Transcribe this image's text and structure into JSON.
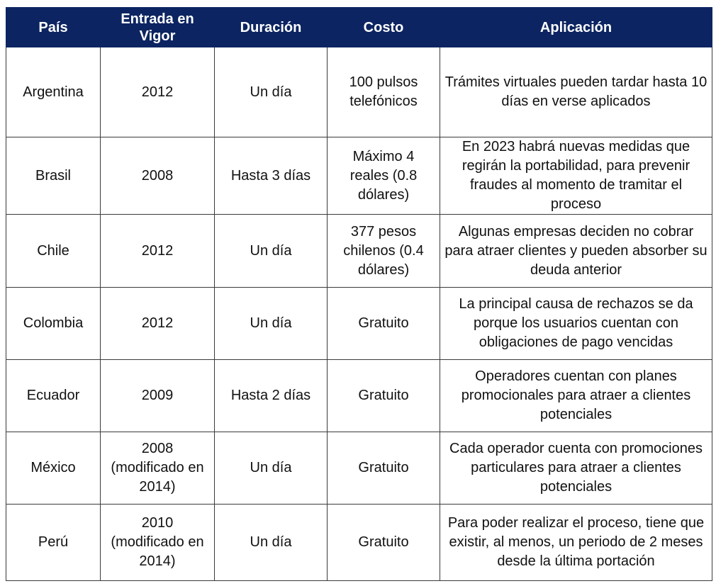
{
  "table": {
    "header": [
      "País",
      "Entrada en Vigor",
      "Duración",
      "Costo",
      "Aplicación"
    ],
    "rows": [
      [
        "Argentina",
        "2012",
        "Un día",
        "100 pulsos telefónicos",
        "Trámites virtuales pueden tardar hasta 10 días en verse aplicados"
      ],
      [
        "Brasil",
        "2008",
        "Hasta 3 días",
        "Máximo 4 reales (0.8 dólares)",
        "En 2023 habrá nuevas medidas que regirán la portabilidad, para prevenir fraudes al momento de tramitar el proceso"
      ],
      [
        "Chile",
        "2012",
        "Un día",
        "377 pesos chilenos (0.4 dólares)",
        "Algunas empresas deciden no cobrar para atraer clientes y pueden absorber su deuda anterior"
      ],
      [
        "Colombia",
        "2012",
        "Un día",
        "Gratuito",
        "La principal causa de rechazos se da porque los usuarios cuentan con obligaciones de pago vencidas"
      ],
      [
        "Ecuador",
        "2009",
        "Hasta 2 días",
        "Gratuito",
        "Operadores cuentan con planes promocionales para atraer a clientes potenciales"
      ],
      [
        "México",
        "2008 (modificado en 2014)",
        "Un día",
        "Gratuito",
        "Cada operador cuenta con promociones particulares para atraer a clientes potenciales"
      ],
      [
        "Perú",
        "2010 (modificado en 2014)",
        "Un día",
        "Gratuito",
        "Para poder realizar el proceso, tiene que existir, al menos, un periodo de 2 meses desde la última portación"
      ]
    ]
  }
}
